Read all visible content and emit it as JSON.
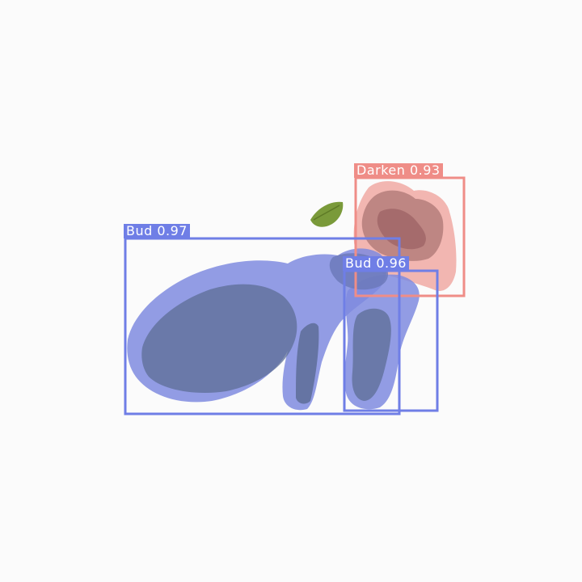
{
  "image": {
    "background_color": "#fbfbfb",
    "subject": "flower bud and withered petal on white background",
    "colors": {
      "bud": "#6f7ee6",
      "darken": "#ef8d87",
      "leaf": "#7a9a3a",
      "petal": "#b07a78"
    }
  },
  "detections": [
    {
      "class": "Bud",
      "confidence": "0.97",
      "label": "Bud 0.97",
      "color": "#6f7ee6"
    },
    {
      "class": "Bud",
      "confidence": "0.96",
      "label": "Bud 0.96",
      "color": "#6f7ee6"
    },
    {
      "class": "Darken",
      "confidence": "0.93",
      "label": "Darken 0.93",
      "color": "#ef8d87"
    }
  ]
}
